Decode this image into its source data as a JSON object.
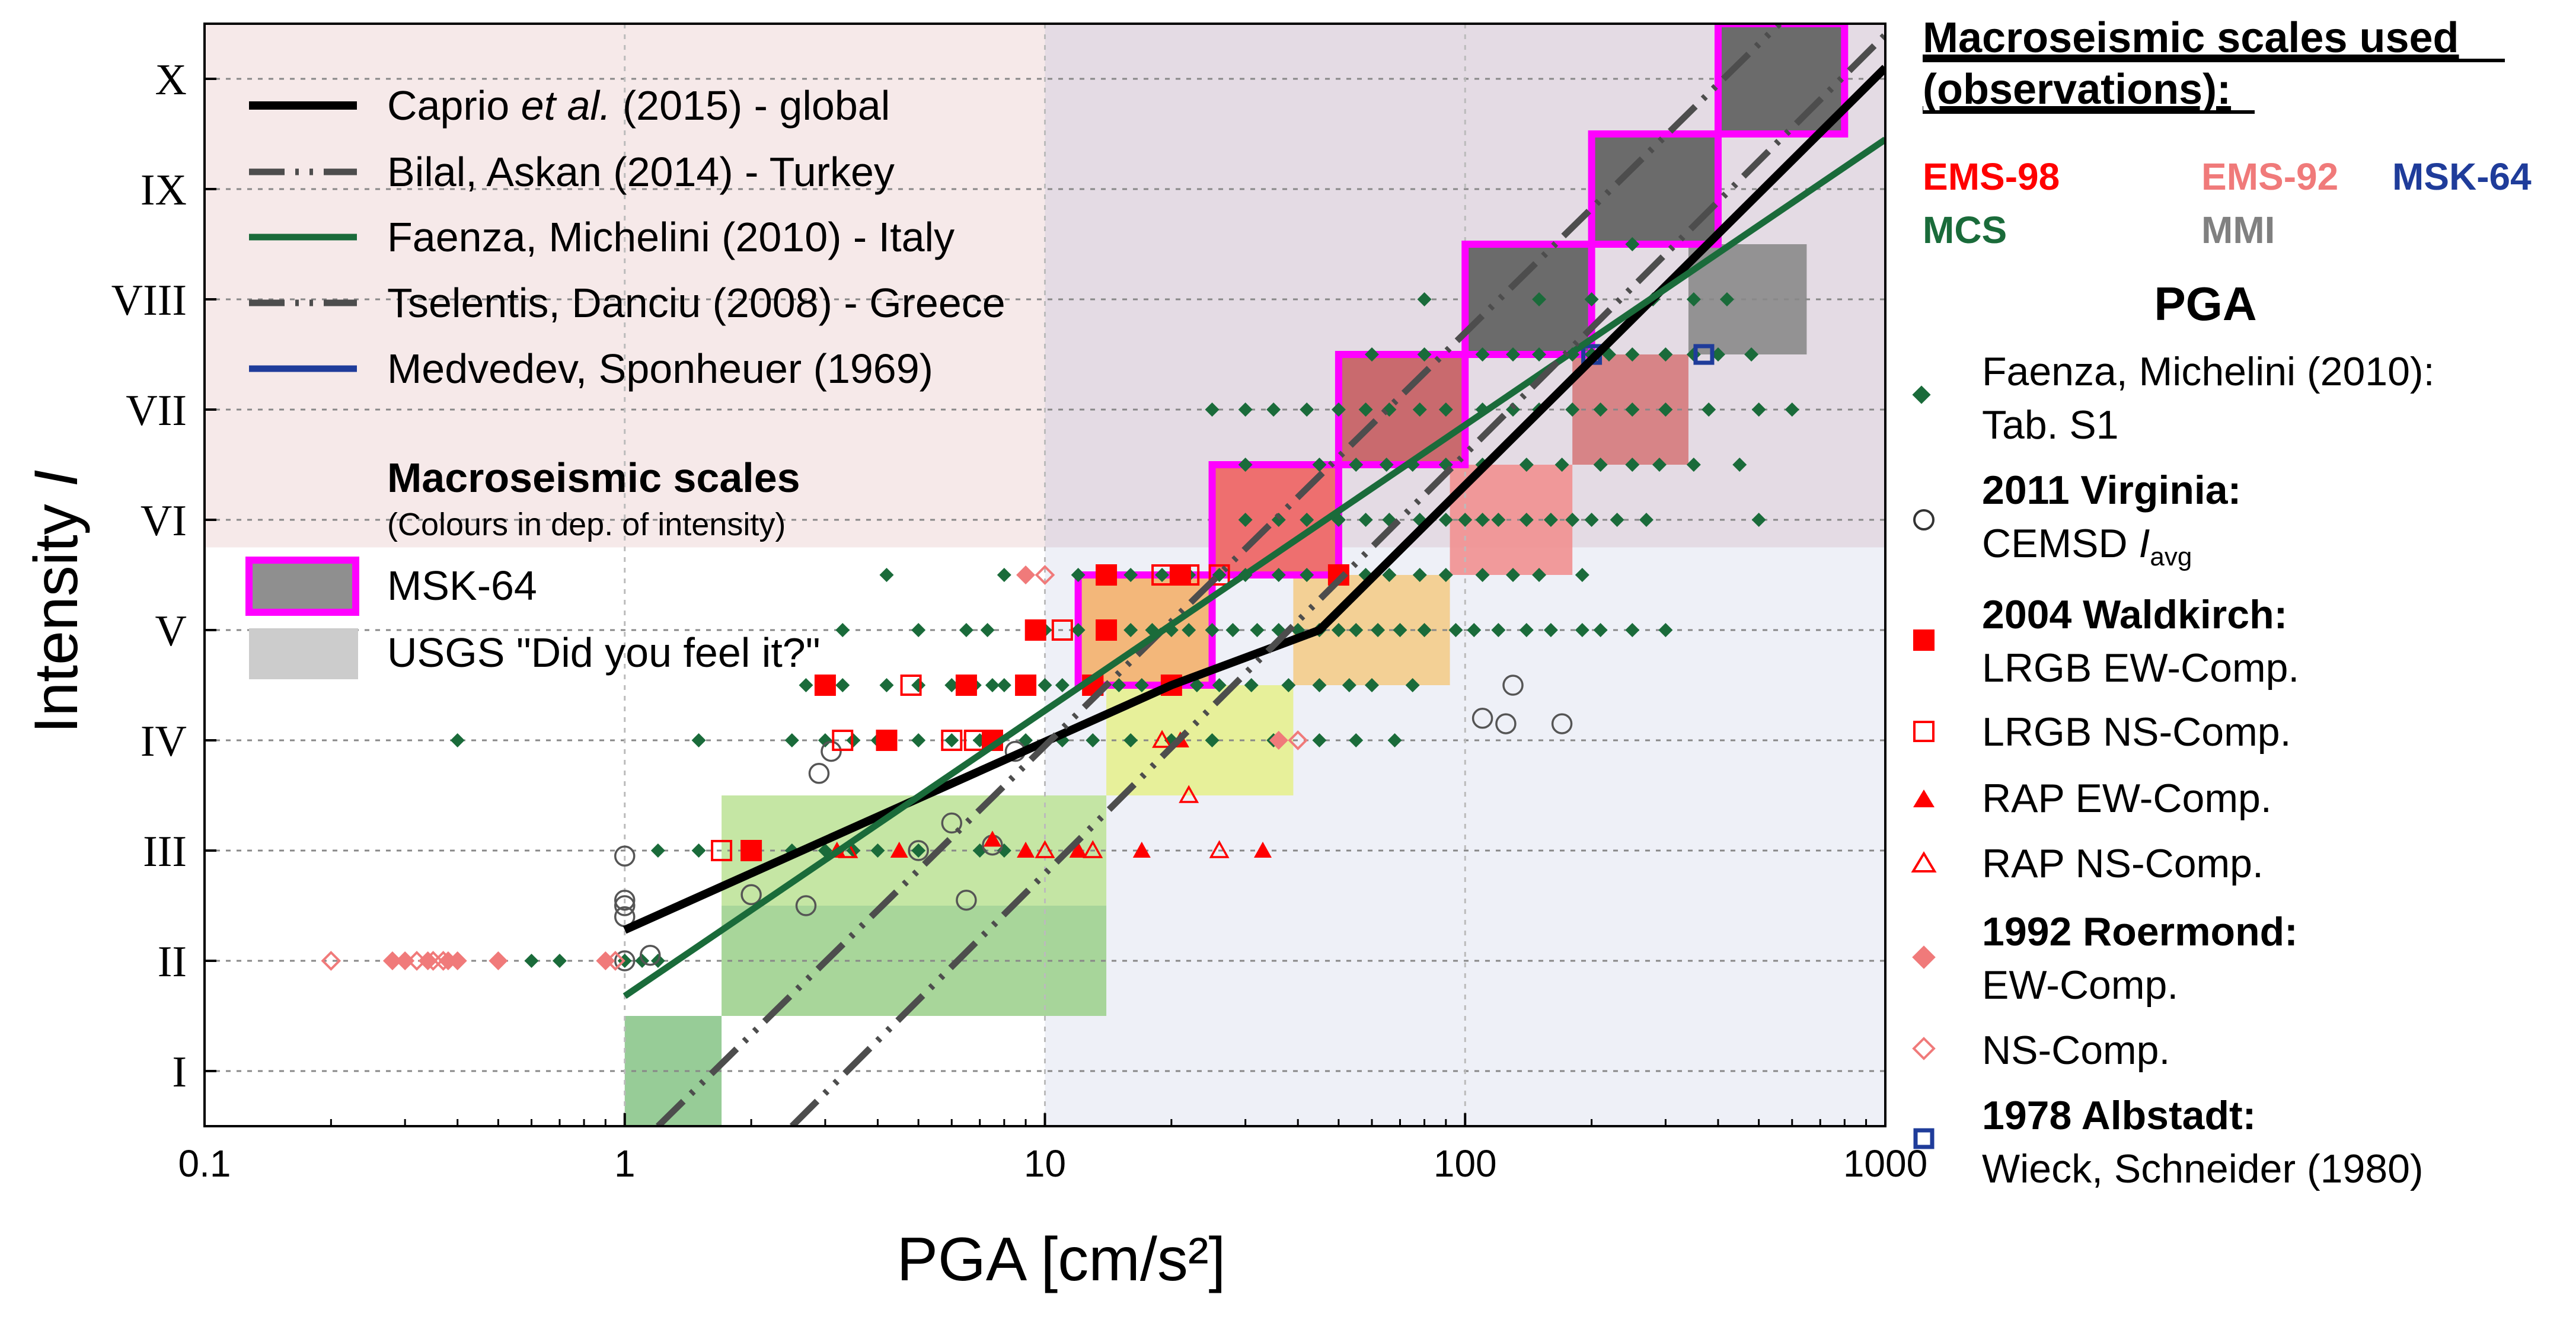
{
  "colors": {
    "caprio": "#000000",
    "bilal": "#4d4d4d",
    "faenza": "#1a6b3a",
    "tselentis": "#4d4d4d",
    "medvedev": "#1f3c9a",
    "msk_border": "#ff00ff",
    "faenza_pts": "#1a6b3a",
    "waldkirch": "#ff0000",
    "roermond": "#f07a7a",
    "albstadt": "#1f3c9a",
    "virginia": "#555555",
    "ems98": "#ff0000",
    "ems92": "#f07a7a",
    "msk64": "#1f3c9a",
    "mcs": "#1a6b3a",
    "mmi": "#808080"
  },
  "chart_data": {
    "type": "scatter",
    "x_scale": "log",
    "xlim": [
      0.1,
      1000
    ],
    "ylim": [
      0.5,
      10.5
    ],
    "xlabel": "PGA [cm/s²]",
    "ylabel": "Intensity I",
    "x_ticks": [
      {
        "v": 0.1,
        "label": "0.1"
      },
      {
        "v": 1,
        "label": "1"
      },
      {
        "v": 10,
        "label": "10"
      },
      {
        "v": 100,
        "label": "100"
      },
      {
        "v": 1000,
        "label": "1000"
      }
    ],
    "y_ticks": [
      {
        "v": 1,
        "label": "I"
      },
      {
        "v": 2,
        "label": "II"
      },
      {
        "v": 3,
        "label": "III"
      },
      {
        "v": 4,
        "label": "IV"
      },
      {
        "v": 5,
        "label": "V"
      },
      {
        "v": 6,
        "label": "VI"
      },
      {
        "v": 7,
        "label": "VII"
      },
      {
        "v": 8,
        "label": "VIII"
      },
      {
        "v": 9,
        "label": "IX"
      },
      {
        "v": 10,
        "label": "X"
      }
    ],
    "background_regions": [
      {
        "x0": 0.1,
        "x1": 1000,
        "y0": 5.75,
        "y1": 10.5,
        "color": "#f6e9e9"
      },
      {
        "x0": 10,
        "x1": 1000,
        "y0": 0.5,
        "y1": 5.75,
        "color": "#eef0f7"
      },
      {
        "x0": 10,
        "x1": 1000,
        "y0": 5.75,
        "y1": 10.5,
        "color": "#e4dbe4"
      }
    ],
    "msk64_boxes": [
      {
        "x0": 12,
        "x1": 25,
        "y0": 4.5,
        "y1": 5.5,
        "intensity": 5,
        "fill": "#f3b77a"
      },
      {
        "x0": 25,
        "x1": 50,
        "y0": 5.5,
        "y1": 6.5,
        "intensity": 6,
        "fill": "#ee6f6f"
      },
      {
        "x0": 50,
        "x1": 100,
        "y0": 6.5,
        "y1": 7.5,
        "intensity": 7,
        "fill": "#c96a6e"
      },
      {
        "x0": 100,
        "x1": 200,
        "y0": 7.5,
        "y1": 8.5,
        "intensity": 8,
        "fill": "#6b6b6b"
      },
      {
        "x0": 200,
        "x1": 400,
        "y0": 8.5,
        "y1": 9.5,
        "intensity": 9,
        "fill": "#6b6b6b"
      },
      {
        "x0": 400,
        "x1": 800,
        "y0": 9.5,
        "y1": 10.5,
        "intensity": 10,
        "fill": "#6b6b6b"
      }
    ],
    "usgs_boxes": [
      {
        "x0": 1,
        "x1": 1.7,
        "y0": 0.5,
        "y1": 1.5,
        "intensity": 1,
        "fill": "#8cc68c"
      },
      {
        "x0": 1.7,
        "x1": 14,
        "y0": 1.5,
        "y1": 2.5,
        "intensity": 2,
        "fill": "#9fd18f"
      },
      {
        "x0": 1.7,
        "x1": 14,
        "y0": 2.5,
        "y1": 3.5,
        "intensity": 3,
        "fill": "#bfe39a"
      },
      {
        "x0": 14,
        "x1": 39,
        "y0": 3.5,
        "y1": 4.5,
        "intensity": 4,
        "fill": "#e6f08f"
      },
      {
        "x0": 39,
        "x1": 92,
        "y0": 4.5,
        "y1": 5.5,
        "intensity": 5,
        "fill": "#f3cc8a"
      },
      {
        "x0": 92,
        "x1": 180,
        "y0": 5.5,
        "y1": 6.5,
        "intensity": 6,
        "fill": "#f19090"
      },
      {
        "x0": 180,
        "x1": 340,
        "y0": 6.5,
        "y1": 7.5,
        "intensity": 7,
        "fill": "#d57a7c"
      },
      {
        "x0": 340,
        "x1": 650,
        "y0": 7.5,
        "y1": 8.5,
        "intensity": 8,
        "fill": "#8a8a8a"
      }
    ],
    "series_lines": [
      {
        "name": "Caprio et al. (2015) - global",
        "key": "caprio",
        "style": "solid",
        "width": 14,
        "points": [
          [
            1,
            2.28
          ],
          [
            20,
            4.5
          ],
          [
            45,
            5.0
          ],
          [
            1000,
            10.1
          ]
        ]
      },
      {
        "name": "Bilal, Askan (2014) - Turkey",
        "key": "bilal",
        "style": "dashdotdot",
        "width": 11,
        "points": [
          [
            1.2,
            0.5
          ],
          [
            560,
            10.5
          ]
        ]
      },
      {
        "name": "Faenza, Michelini (2010) - Italy",
        "key": "faenza",
        "style": "solid",
        "width": 11,
        "points": [
          [
            1,
            1.68
          ],
          [
            1000,
            9.45
          ]
        ]
      },
      {
        "name": "Tselentis, Danciu (2008) - Greece",
        "key": "tselentis",
        "style": "dashdotdot",
        "width": 11,
        "points": [
          [
            2.5,
            0.5
          ],
          [
            1000,
            10.4
          ]
        ]
      },
      {
        "name": "Medvedev, Sponheuer (1969)",
        "key": "medvedev",
        "style": "solid",
        "width": 11,
        "points": []
      }
    ],
    "faenza_points": [
      [
        0.4,
        4
      ],
      [
        0.6,
        2
      ],
      [
        0.7,
        2
      ],
      [
        0.9,
        2
      ],
      [
        1,
        2
      ],
      [
        1.1,
        2
      ],
      [
        1.2,
        2
      ],
      [
        1.2,
        3
      ],
      [
        1.5,
        3
      ],
      [
        2,
        3
      ],
      [
        2.5,
        3
      ],
      [
        3,
        3
      ],
      [
        3.5,
        3
      ],
      [
        4,
        3
      ],
      [
        5,
        3
      ],
      [
        7,
        3
      ],
      [
        8,
        3
      ],
      [
        1.5,
        4
      ],
      [
        2.5,
        4
      ],
      [
        3,
        4
      ],
      [
        3.5,
        4
      ],
      [
        4,
        4
      ],
      [
        5,
        4
      ],
      [
        6,
        4
      ],
      [
        7,
        4
      ],
      [
        9,
        4
      ],
      [
        11,
        4
      ],
      [
        13,
        4
      ],
      [
        16,
        4
      ],
      [
        20,
        4
      ],
      [
        25,
        4
      ],
      [
        35,
        4
      ],
      [
        45,
        4
      ],
      [
        55,
        4
      ],
      [
        68,
        4
      ],
      [
        2.7,
        4.5
      ],
      [
        3.3,
        4.5
      ],
      [
        4.2,
        4.5
      ],
      [
        5,
        4.5
      ],
      [
        6,
        4.5
      ],
      [
        6.8,
        4.5
      ],
      [
        7.5,
        4.5
      ],
      [
        8,
        4.5
      ],
      [
        10,
        4.5
      ],
      [
        11,
        4.5
      ],
      [
        13,
        4.5
      ],
      [
        15,
        4.5
      ],
      [
        17,
        4.5
      ],
      [
        20,
        4.5
      ],
      [
        23,
        4.5
      ],
      [
        26,
        4.5
      ],
      [
        31,
        4.5
      ],
      [
        38,
        4.5
      ],
      [
        45,
        4.5
      ],
      [
        53,
        4.5
      ],
      [
        60,
        4.5
      ],
      [
        75,
        4.5
      ],
      [
        3.3,
        5
      ],
      [
        5,
        5
      ],
      [
        6.5,
        5
      ],
      [
        7.3,
        5
      ],
      [
        10,
        5
      ],
      [
        12,
        5
      ],
      [
        14,
        5
      ],
      [
        16,
        5
      ],
      [
        18,
        5
      ],
      [
        20,
        5
      ],
      [
        22,
        5
      ],
      [
        25,
        5
      ],
      [
        28,
        5
      ],
      [
        32,
        5
      ],
      [
        36,
        5
      ],
      [
        40,
        5
      ],
      [
        45,
        5
      ],
      [
        50,
        5
      ],
      [
        55,
        5
      ],
      [
        62,
        5
      ],
      [
        70,
        5
      ],
      [
        80,
        5
      ],
      [
        95,
        5
      ],
      [
        105,
        5
      ],
      [
        120,
        5
      ],
      [
        140,
        5
      ],
      [
        160,
        5
      ],
      [
        190,
        5
      ],
      [
        210,
        5
      ],
      [
        250,
        5
      ],
      [
        300,
        5
      ],
      [
        4.2,
        5.5
      ],
      [
        8,
        5.5
      ],
      [
        12,
        5.5
      ],
      [
        14,
        5.5
      ],
      [
        16,
        5.5
      ],
      [
        19,
        5.5
      ],
      [
        22,
        5.5
      ],
      [
        26,
        5.5
      ],
      [
        30,
        5.5
      ],
      [
        36,
        5.5
      ],
      [
        42,
        5.5
      ],
      [
        50,
        5.5
      ],
      [
        58,
        5.5
      ],
      [
        66,
        5.5
      ],
      [
        78,
        5.5
      ],
      [
        90,
        5.5
      ],
      [
        110,
        5.5
      ],
      [
        130,
        5.5
      ],
      [
        150,
        5.5
      ],
      [
        190,
        5.5
      ],
      [
        30,
        6
      ],
      [
        36,
        6
      ],
      [
        42,
        6
      ],
      [
        50,
        6
      ],
      [
        58,
        6
      ],
      [
        66,
        6
      ],
      [
        78,
        6
      ],
      [
        90,
        6
      ],
      [
        100,
        6
      ],
      [
        110,
        6
      ],
      [
        120,
        6
      ],
      [
        140,
        6
      ],
      [
        160,
        6
      ],
      [
        180,
        6
      ],
      [
        200,
        6
      ],
      [
        230,
        6
      ],
      [
        270,
        6
      ],
      [
        30,
        6.5
      ],
      [
        45,
        6.5
      ],
      [
        55,
        6.5
      ],
      [
        65,
        6.5
      ],
      [
        75,
        6.5
      ],
      [
        90,
        6.5
      ],
      [
        110,
        6.5
      ],
      [
        140,
        6.5
      ],
      [
        170,
        6.5
      ],
      [
        210,
        6.5
      ],
      [
        250,
        6.5
      ],
      [
        290,
        6.5
      ],
      [
        350,
        6.5
      ],
      [
        450,
        6.5
      ],
      [
        25,
        7
      ],
      [
        30,
        7
      ],
      [
        35,
        7
      ],
      [
        42,
        7
      ],
      [
        50,
        7
      ],
      [
        58,
        7
      ],
      [
        66,
        7
      ],
      [
        78,
        7
      ],
      [
        90,
        7
      ],
      [
        110,
        7
      ],
      [
        130,
        7
      ],
      [
        150,
        7
      ],
      [
        180,
        7
      ],
      [
        210,
        7
      ],
      [
        250,
        7
      ],
      [
        300,
        7
      ],
      [
        380,
        7
      ],
      [
        500,
        7
      ],
      [
        600,
        7
      ],
      [
        60,
        7.5
      ],
      [
        80,
        7.5
      ],
      [
        110,
        7.5
      ],
      [
        130,
        7.5
      ],
      [
        150,
        7.5
      ],
      [
        180,
        7.5
      ],
      [
        200,
        7.5
      ],
      [
        220,
        7.5
      ],
      [
        250,
        7.5
      ],
      [
        300,
        7.5
      ],
      [
        350,
        7.5
      ],
      [
        400,
        7.5
      ],
      [
        480,
        7.5
      ],
      [
        80,
        8
      ],
      [
        150,
        8
      ],
      [
        200,
        8
      ],
      [
        280,
        8
      ],
      [
        350,
        8
      ],
      [
        420,
        8
      ],
      [
        250,
        8.5
      ],
      [
        500,
        6
      ]
    ],
    "virginia_points": [
      [
        1,
        2
      ],
      [
        1,
        2.4
      ],
      [
        1,
        2.5
      ],
      [
        1,
        2.55
      ],
      [
        1,
        2.95
      ],
      [
        1.15,
        2.05
      ],
      [
        2,
        2.6
      ],
      [
        2.7,
        2.5
      ],
      [
        2.9,
        3.7
      ],
      [
        3.1,
        3.9
      ],
      [
        5,
        3
      ],
      [
        6,
        3.25
      ],
      [
        6.5,
        2.55
      ],
      [
        7.5,
        3.05
      ],
      [
        8.5,
        3.9
      ],
      [
        130,
        4.5
      ],
      [
        110,
        4.2
      ],
      [
        125,
        4.15
      ],
      [
        170,
        4.15
      ]
    ],
    "waldkirch_ew": [
      [
        2,
        3
      ],
      [
        3,
        4.5
      ],
      [
        4.2,
        4
      ],
      [
        6.5,
        4.5
      ],
      [
        7.5,
        4
      ],
      [
        9,
        4.5
      ],
      [
        9.5,
        5
      ],
      [
        13,
        4.5
      ],
      [
        14,
        5
      ],
      [
        14,
        5.5
      ],
      [
        20,
        4.5
      ],
      [
        21,
        5.5
      ],
      [
        50,
        5.5
      ]
    ],
    "waldkirch_ns": [
      [
        1.7,
        3
      ],
      [
        3.3,
        4
      ],
      [
        4.8,
        4.5
      ],
      [
        6,
        4
      ],
      [
        6.8,
        4
      ],
      [
        11,
        5
      ],
      [
        13,
        4.5
      ],
      [
        19,
        5.5
      ],
      [
        22,
        5.5
      ],
      [
        26,
        5.5
      ]
    ],
    "rap_ew": [
      [
        3.2,
        3
      ],
      [
        4.5,
        3
      ],
      [
        7.5,
        3.1
      ],
      [
        9,
        3
      ],
      [
        12,
        3
      ],
      [
        17,
        3
      ],
      [
        21,
        4
      ],
      [
        33,
        3
      ]
    ],
    "rap_ns": [
      [
        3.4,
        3
      ],
      [
        10,
        3
      ],
      [
        13,
        3
      ],
      [
        19,
        4
      ],
      [
        22,
        3.5
      ],
      [
        26,
        3
      ]
    ],
    "roermond_ew": [
      [
        0.28,
        2
      ],
      [
        0.3,
        2
      ],
      [
        0.34,
        2
      ],
      [
        0.38,
        2
      ],
      [
        0.4,
        2
      ],
      [
        0.5,
        2
      ],
      [
        0.9,
        2
      ],
      [
        9,
        5.5
      ],
      [
        36,
        4
      ]
    ],
    "roermond_ns": [
      [
        0.2,
        2
      ],
      [
        0.32,
        2
      ],
      [
        0.35,
        2
      ],
      [
        0.37,
        2
      ],
      [
        0.95,
        2
      ],
      [
        10,
        5.5
      ],
      [
        40,
        4
      ]
    ],
    "albstadt_points": [
      [
        200,
        7.5
      ],
      [
        370,
        7.5
      ]
    ]
  },
  "legend_inner": {
    "items": [
      {
        "label_pre": "Caprio ",
        "label_it": "et al.",
        "label_post": " (2015) - global"
      },
      {
        "label_pre": "Bilal, Askan (2014) - Turkey",
        "label_it": "",
        "label_post": ""
      },
      {
        "label_pre": "Faenza, Michelini (2010) - Italy",
        "label_it": "",
        "label_post": ""
      },
      {
        "label_pre": "Tselentis, Danciu (2008) - Greece",
        "label_it": "",
        "label_post": ""
      },
      {
        "label_pre": "Medvedev, Sponheuer (1969)",
        "label_it": "",
        "label_post": ""
      }
    ],
    "scales_title": "Macroseismic scales",
    "scales_sub": "(Colours in dep. of intensity)",
    "msk64": "MSK-64",
    "usgs": "USGS \"Did you feel it?\""
  },
  "legend_right": {
    "title_line1": "Macroseismic scales used",
    "title_line2": "(observations):",
    "ems98": "EMS-98",
    "ems92": "EMS-92",
    "msk64": "MSK-64",
    "mcs": "MCS",
    "mmi": "MMI",
    "pga": "PGA",
    "faenza_l1": "Faenza, Michelini (2010):",
    "faenza_l2": "Tab. S1",
    "virginia_l1": "2011 Virginia:",
    "virginia_l2": "CEMSD ",
    "virginia_i": "I",
    "virginia_sub": "avg",
    "waldkirch_l1": "2004 Waldkirch:",
    "waldkirch_l2": "LRGB EW-Comp.",
    "lrgb_ns": "LRGB NS-Comp.",
    "rap_ew": "RAP EW-Comp.",
    "rap_ns": "RAP NS-Comp.",
    "roermond_l1": "1992 Roermond:",
    "roermond_l2": "EW-Comp.",
    "roermond_ns": "NS-Comp.",
    "albstadt_l1": "1978 Albstadt:",
    "albstadt_l2": "Wieck, Schneider (1980)"
  },
  "axis": {
    "x_title": "PGA [cm/s²]",
    "y_title_pre": "Intensity ",
    "y_title_it": "I"
  }
}
